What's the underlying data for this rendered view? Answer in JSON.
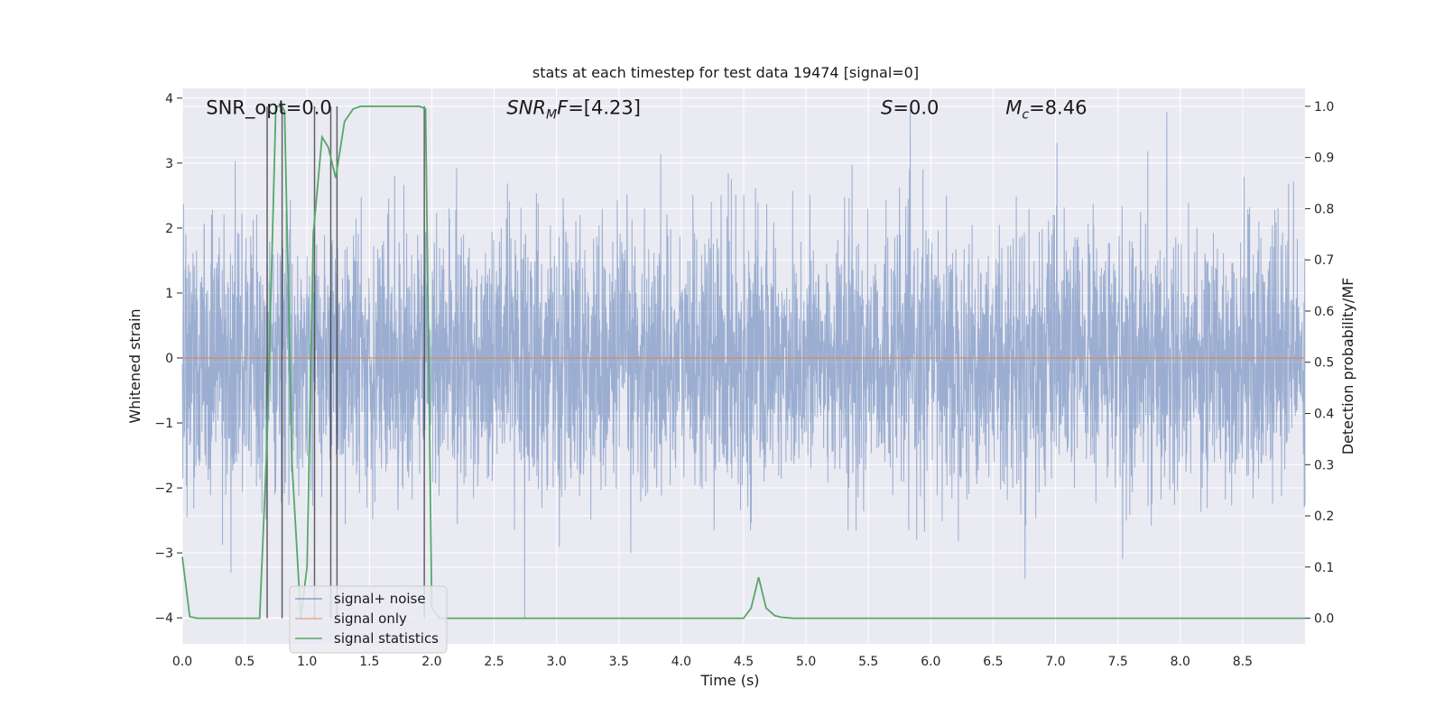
{
  "chart_data": {
    "type": "line",
    "title": "stats at each timestep for test data 19474 [signal=0]",
    "xlabel": "Time (s)",
    "ylabel": "Whitened strain",
    "ylabel_right": "Detection probability/MF",
    "xlim": [
      0.0,
      9.0
    ],
    "ylim": [
      -4.4,
      4.15
    ],
    "ylim_right": [
      -0.05,
      1.035
    ],
    "x_ticks": [
      "0.0",
      "0.5",
      "1.0",
      "1.5",
      "2.0",
      "2.5",
      "3.0",
      "3.5",
      "4.0",
      "4.5",
      "5.0",
      "5.5",
      "6.0",
      "6.5",
      "7.0",
      "7.5",
      "8.0",
      "8.5"
    ],
    "y_ticks": [
      "4",
      "3",
      "2",
      "1",
      "0",
      "−1",
      "−2",
      "−3",
      "−4"
    ],
    "y_ticks_right": [
      "1.0",
      "0.9",
      "0.8",
      "0.7",
      "0.6",
      "0.5",
      "0.4",
      "0.3",
      "0.2",
      "0.1",
      "0.0"
    ],
    "grid": true,
    "legend_position": "lower-left",
    "annotations": [
      {
        "text": "SNR_opt=0.0",
        "x": 0.19,
        "y": 3.85
      },
      {
        "text": "SNR_MF=[4.23]",
        "x": 2.6,
        "y": 3.85
      },
      {
        "text": "S=0.0",
        "x": 5.6,
        "y": 3.85
      },
      {
        "text": "M_c=8.46",
        "x": 6.6,
        "y": 3.85
      }
    ],
    "series": [
      {
        "name": "signal+ noise",
        "color": "#4c72b0",
        "axis": "left",
        "kind": "noise",
        "approx_std": 1.0,
        "approx_range": [
          -4.0,
          3.85
        ]
      },
      {
        "name": "signal only",
        "color": "#dd8452",
        "axis": "left",
        "x": [
          0.0,
          9.0
        ],
        "values": [
          0.0,
          0.0
        ]
      },
      {
        "name": "signal statistics",
        "color": "#55a868",
        "axis": "right",
        "x": [
          0.0,
          0.06,
          0.12,
          0.62,
          0.68,
          0.75,
          0.8,
          0.82,
          0.88,
          0.95,
          1.0,
          1.05,
          1.12,
          1.17,
          1.23,
          1.3,
          1.37,
          1.43,
          1.9,
          1.95,
          2.0,
          2.06,
          4.5,
          4.56,
          4.62,
          4.68,
          4.75,
          4.8,
          4.9,
          9.0
        ],
        "values": [
          0.12,
          0.003,
          0.0,
          0.0,
          0.35,
          1.0,
          1.0,
          0.99,
          0.3,
          0.0,
          0.1,
          0.75,
          0.94,
          0.92,
          0.86,
          0.97,
          0.995,
          1.0,
          1.0,
          0.995,
          0.02,
          0.0,
          0.0,
          0.02,
          0.08,
          0.02,
          0.005,
          0.002,
          0.0,
          0.0
        ]
      },
      {
        "name": "",
        "kind": "vertical-markers",
        "color": "#333333",
        "x": [
          0.68,
          0.8,
          1.06,
          1.19,
          1.24,
          1.94
        ]
      }
    ]
  }
}
